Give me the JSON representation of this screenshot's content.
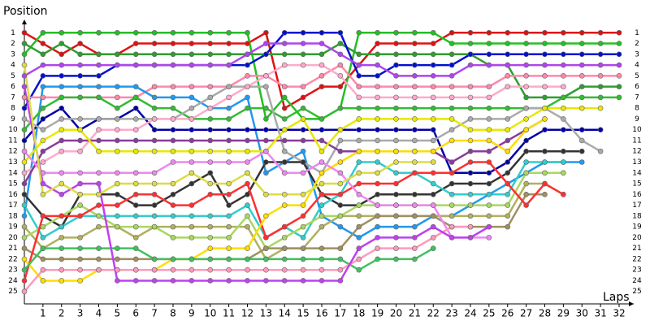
{
  "chart_data": {
    "type": "line",
    "y_label": "Position",
    "x_label": "Laps",
    "x": [
      0,
      1,
      2,
      3,
      4,
      5,
      6,
      7,
      8,
      9,
      10,
      11,
      12,
      13,
      14,
      15,
      16,
      17,
      18,
      19,
      20,
      21,
      22,
      23,
      24,
      25,
      26,
      27,
      28,
      29,
      30,
      31,
      32
    ],
    "xlim": [
      0,
      32.7
    ],
    "xticks": [
      1,
      2,
      3,
      4,
      5,
      6,
      7,
      8,
      9,
      10,
      11,
      12,
      13,
      14,
      15,
      16,
      17,
      18,
      19,
      20,
      21,
      22,
      23,
      24,
      25,
      26,
      27,
      28,
      29,
      30,
      31,
      32
    ],
    "ylim": [
      0,
      26
    ],
    "y_inverted": true,
    "yticks": [
      1,
      2,
      3,
      4,
      5,
      6,
      7,
      8,
      9,
      10,
      11,
      12,
      13,
      14,
      15,
      16,
      17,
      18,
      19,
      20,
      21,
      22,
      23,
      24,
      25
    ],
    "markers": true,
    "series": [
      {
        "color": "#e01010",
        "values": [
          1,
          2,
          3,
          2,
          3,
          3,
          2,
          2,
          2,
          2,
          2,
          2,
          2,
          1,
          8,
          7,
          6,
          6,
          4,
          2,
          2,
          2,
          2,
          1,
          1,
          1,
          1,
          1,
          1,
          1,
          1,
          1,
          1
        ]
      },
      {
        "color": "#22c022",
        "values": [
          3,
          1,
          1,
          1,
          1,
          1,
          1,
          1,
          1,
          1,
          1,
          1,
          1,
          9,
          7,
          9,
          9,
          8,
          1,
          1,
          1,
          1,
          1,
          2,
          2,
          2,
          2,
          2,
          2,
          2,
          2,
          2,
          2
        ]
      },
      {
        "color": "#2e9e2e",
        "values": [
          2,
          3,
          2,
          3,
          3,
          3,
          3,
          3,
          3,
          3,
          3,
          3,
          3,
          3,
          3,
          3,
          3,
          2,
          3,
          3,
          3,
          3,
          3,
          3,
          3,
          4,
          4,
          7,
          7,
          7,
          6,
          6,
          6
        ]
      },
      {
        "color": "#0010d0",
        "values": [
          8,
          5,
          5,
          5,
          5,
          4,
          4,
          4,
          4,
          4,
          4,
          4,
          4,
          3,
          1,
          1,
          1,
          1,
          5,
          5,
          4,
          4,
          4,
          4,
          3,
          3,
          3,
          3,
          3,
          3,
          3,
          3,
          3
        ]
      },
      {
        "color": "#b044f0",
        "values": [
          5,
          4,
          4,
          4,
          4,
          4,
          4,
          4,
          4,
          4,
          4,
          4,
          3,
          2,
          2,
          2,
          2,
          3,
          4,
          4,
          5,
          5,
          5,
          5,
          4,
          4,
          4,
          4,
          4,
          4,
          4,
          4,
          4
        ]
      },
      {
        "color": "#ff88aa",
        "values": [
          7,
          7,
          7,
          7,
          7,
          7,
          7,
          6,
          6,
          6,
          6,
          6,
          5,
          5,
          6,
          6,
          5,
          4,
          6,
          6,
          6,
          6,
          6,
          6,
          6,
          6,
          5,
          5,
          5,
          5,
          5,
          5,
          5
        ]
      },
      {
        "color": "#2299ee",
        "values": [
          18,
          6,
          6,
          6,
          6,
          6,
          6,
          7,
          7,
          7,
          8,
          8,
          7,
          14,
          13,
          12,
          18,
          19,
          20,
          19,
          19,
          19,
          18,
          18,
          17,
          16,
          15,
          14,
          13,
          13,
          13,
          null,
          null
        ]
      },
      {
        "color": "#33bb33",
        "values": [
          10,
          8,
          7,
          7,
          7,
          8,
          7,
          8,
          8,
          9,
          9,
          9,
          8,
          8,
          9,
          8,
          9,
          8,
          8,
          8,
          8,
          8,
          8,
          8,
          8,
          8,
          8,
          8,
          8,
          7,
          7,
          7,
          7
        ]
      },
      {
        "color": "#0000a8",
        "values": [
          11,
          9,
          8,
          10,
          9,
          9,
          8,
          10,
          10,
          10,
          10,
          10,
          10,
          10,
          10,
          10,
          10,
          10,
          10,
          10,
          10,
          10,
          10,
          14,
          14,
          14,
          13,
          11,
          10,
          10,
          10,
          10,
          null
        ]
      },
      {
        "color": "#aaaaaa",
        "values": [
          9,
          10,
          9,
          9,
          9,
          9,
          9,
          9,
          9,
          8,
          7,
          6,
          6,
          6,
          12,
          13,
          14,
          11,
          11,
          11,
          11,
          11,
          11,
          10,
          9,
          9,
          9,
          8,
          8,
          9,
          11,
          12,
          null
        ]
      },
      {
        "color": "#ffaacc",
        "values": [
          14,
          13,
          12,
          12,
          10,
          10,
          10,
          9,
          9,
          9,
          8,
          7,
          6,
          5,
          4,
          4,
          4,
          5,
          7,
          7,
          7,
          7,
          7,
          7,
          7,
          7,
          6,
          6,
          6,
          6,
          null,
          null,
          null
        ]
      },
      {
        "color": "#8a3aa0",
        "values": [
          15,
          12,
          11,
          11,
          11,
          11,
          11,
          11,
          11,
          11,
          11,
          11,
          11,
          11,
          11,
          11,
          11,
          12,
          12,
          12,
          12,
          12,
          12,
          13,
          12,
          12,
          11,
          10,
          9,
          null,
          null,
          null,
          null
        ]
      },
      {
        "color": "#e8e800",
        "values": [
          13,
          11,
          10,
          10,
          12,
          12,
          12,
          12,
          12,
          12,
          12,
          12,
          12,
          12,
          10,
          9,
          12,
          10,
          9,
          9,
          9,
          9,
          9,
          9,
          10,
          10,
          10,
          9,
          8,
          8,
          8,
          8,
          null
        ]
      },
      {
        "color": "#333333",
        "values": [
          16,
          18,
          19,
          16,
          16,
          16,
          17,
          17,
          16,
          15,
          14,
          17,
          16,
          13,
          13,
          13,
          16,
          17,
          17,
          16,
          16,
          16,
          16,
          15,
          15,
          15,
          14,
          12,
          12,
          12,
          12,
          null,
          null
        ]
      },
      {
        "color": "#33cccc",
        "values": [
          17,
          20,
          19,
          18,
          18,
          18,
          18,
          18,
          18,
          18,
          18,
          18,
          17,
          20,
          19,
          20,
          17,
          16,
          13,
          13,
          14,
          14,
          15,
          16,
          16,
          16,
          16,
          13,
          13,
          13,
          null,
          null,
          null
        ]
      },
      {
        "color": "#b0b060",
        "values": [
          19,
          21,
          20,
          20,
          19,
          19,
          20,
          19,
          19,
          19,
          19,
          19,
          19,
          22,
          21,
          21,
          19,
          18,
          18,
          18,
          18,
          18,
          18,
          18,
          18,
          18,
          18,
          15,
          15,
          16,
          null,
          null,
          null
        ]
      },
      {
        "color": "#a8d860",
        "values": [
          20,
          19,
          18,
          17,
          18,
          19,
          19,
          19,
          20,
          20,
          20,
          20,
          18,
          21,
          20,
          19,
          18,
          18,
          17,
          17,
          17,
          17,
          17,
          17,
          17,
          17,
          17,
          14,
          14,
          14,
          null,
          null,
          null
        ]
      },
      {
        "color": "#a09060",
        "values": [
          21,
          22,
          22,
          22,
          22,
          22,
          22,
          22,
          22,
          22,
          22,
          22,
          22,
          21,
          21,
          21,
          21,
          21,
          19,
          18,
          18,
          18,
          18,
          19,
          19,
          19,
          19,
          16,
          16,
          null,
          null,
          null,
          null
        ]
      },
      {
        "color": "#ff3030",
        "values": [
          24,
          18,
          18,
          18,
          17,
          17,
          16,
          16,
          17,
          17,
          16,
          16,
          15,
          20,
          19,
          18,
          16,
          16,
          15,
          15,
          15,
          14,
          14,
          14,
          13,
          13,
          15,
          17,
          15,
          16,
          null,
          null,
          null
        ]
      },
      {
        "color": "#ffdd00",
        "values": [
          22,
          24,
          24,
          24,
          23,
          23,
          23,
          23,
          22,
          22,
          21,
          21,
          21,
          18,
          17,
          17,
          14,
          13,
          12,
          12,
          12,
          12,
          12,
          11,
          11,
          11,
          12,
          10,
          9,
          null,
          null,
          null,
          null
        ]
      },
      {
        "color": "#ee88ee",
        "values": [
          12,
          14,
          14,
          14,
          14,
          14,
          14,
          14,
          13,
          13,
          13,
          13,
          13,
          12,
          14,
          14,
          13,
          14,
          16,
          17,
          17,
          17,
          17,
          20,
          20,
          20,
          null,
          null,
          null,
          null,
          null,
          null,
          null
        ]
      },
      {
        "color": "#40c060",
        "values": [
          23,
          21,
          21,
          21,
          21,
          21,
          21,
          22,
          22,
          22,
          22,
          22,
          22,
          22,
          22,
          22,
          22,
          22,
          23,
          22,
          22,
          22,
          21,
          null,
          null,
          null,
          null,
          null,
          null,
          null,
          null,
          null,
          null
        ]
      },
      {
        "color": "#ff99bb",
        "values": [
          25,
          23,
          23,
          23,
          23,
          23,
          23,
          23,
          23,
          23,
          23,
          23,
          23,
          23,
          23,
          23,
          23,
          23,
          22,
          21,
          21,
          21,
          20,
          19,
          19,
          null,
          null,
          null,
          null,
          null,
          null,
          null,
          null
        ]
      },
      {
        "color": "#c040f0",
        "values": [
          6,
          15,
          16,
          15,
          15,
          24,
          24,
          24,
          24,
          24,
          24,
          24,
          24,
          24,
          24,
          24,
          24,
          24,
          21,
          20,
          20,
          20,
          19,
          20,
          20,
          19,
          null,
          null,
          null,
          null,
          null,
          null,
          null
        ]
      },
      {
        "color": "#dddd44",
        "values": [
          4,
          16,
          15,
          16,
          16,
          15,
          15,
          15,
          15,
          14,
          15,
          15,
          14,
          16,
          16,
          16,
          15,
          15,
          14,
          14,
          13,
          13,
          13,
          null,
          null,
          null,
          null,
          null,
          null,
          null,
          null,
          null,
          null
        ]
      }
    ]
  }
}
